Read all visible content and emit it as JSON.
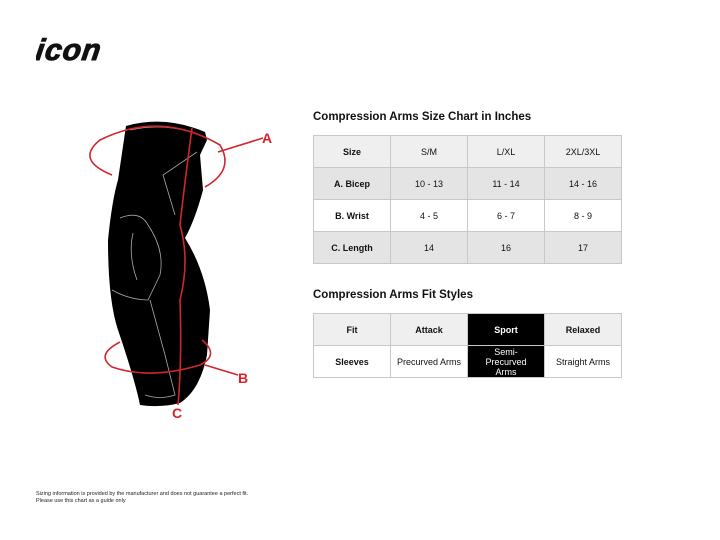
{
  "brand": {
    "logo_text": "icon"
  },
  "diagram": {
    "labels": {
      "a": "A",
      "b": "B",
      "c": "C"
    },
    "accent_color": "#d0262c"
  },
  "size_chart": {
    "title": "Compression Arms Size Chart in Inches",
    "header": [
      "Size",
      "S/M",
      "L/XL",
      "2XL/3XL"
    ],
    "rows": [
      [
        "A. Bicep",
        "10 - 13",
        "11 - 14",
        "14 - 16"
      ],
      [
        "B. Wrist",
        "4 - 5",
        "6 - 7",
        "8 - 9"
      ],
      [
        "C. Length",
        "14",
        "16",
        "17"
      ]
    ]
  },
  "fit_styles": {
    "title": "Compression Arms Fit Styles",
    "header": [
      "Fit",
      "Attack",
      "Sport",
      "Relaxed"
    ],
    "row": [
      "Sleeves",
      "Precurved Arms",
      "Semi-Precurved Arms",
      "Straight Arms"
    ],
    "highlighted": "Sport"
  },
  "footer": {
    "line1": "Sizing information is provided by the manufacturer and does not guarantee a perfect fit.",
    "line2": "Please use this chart as a guide only"
  }
}
